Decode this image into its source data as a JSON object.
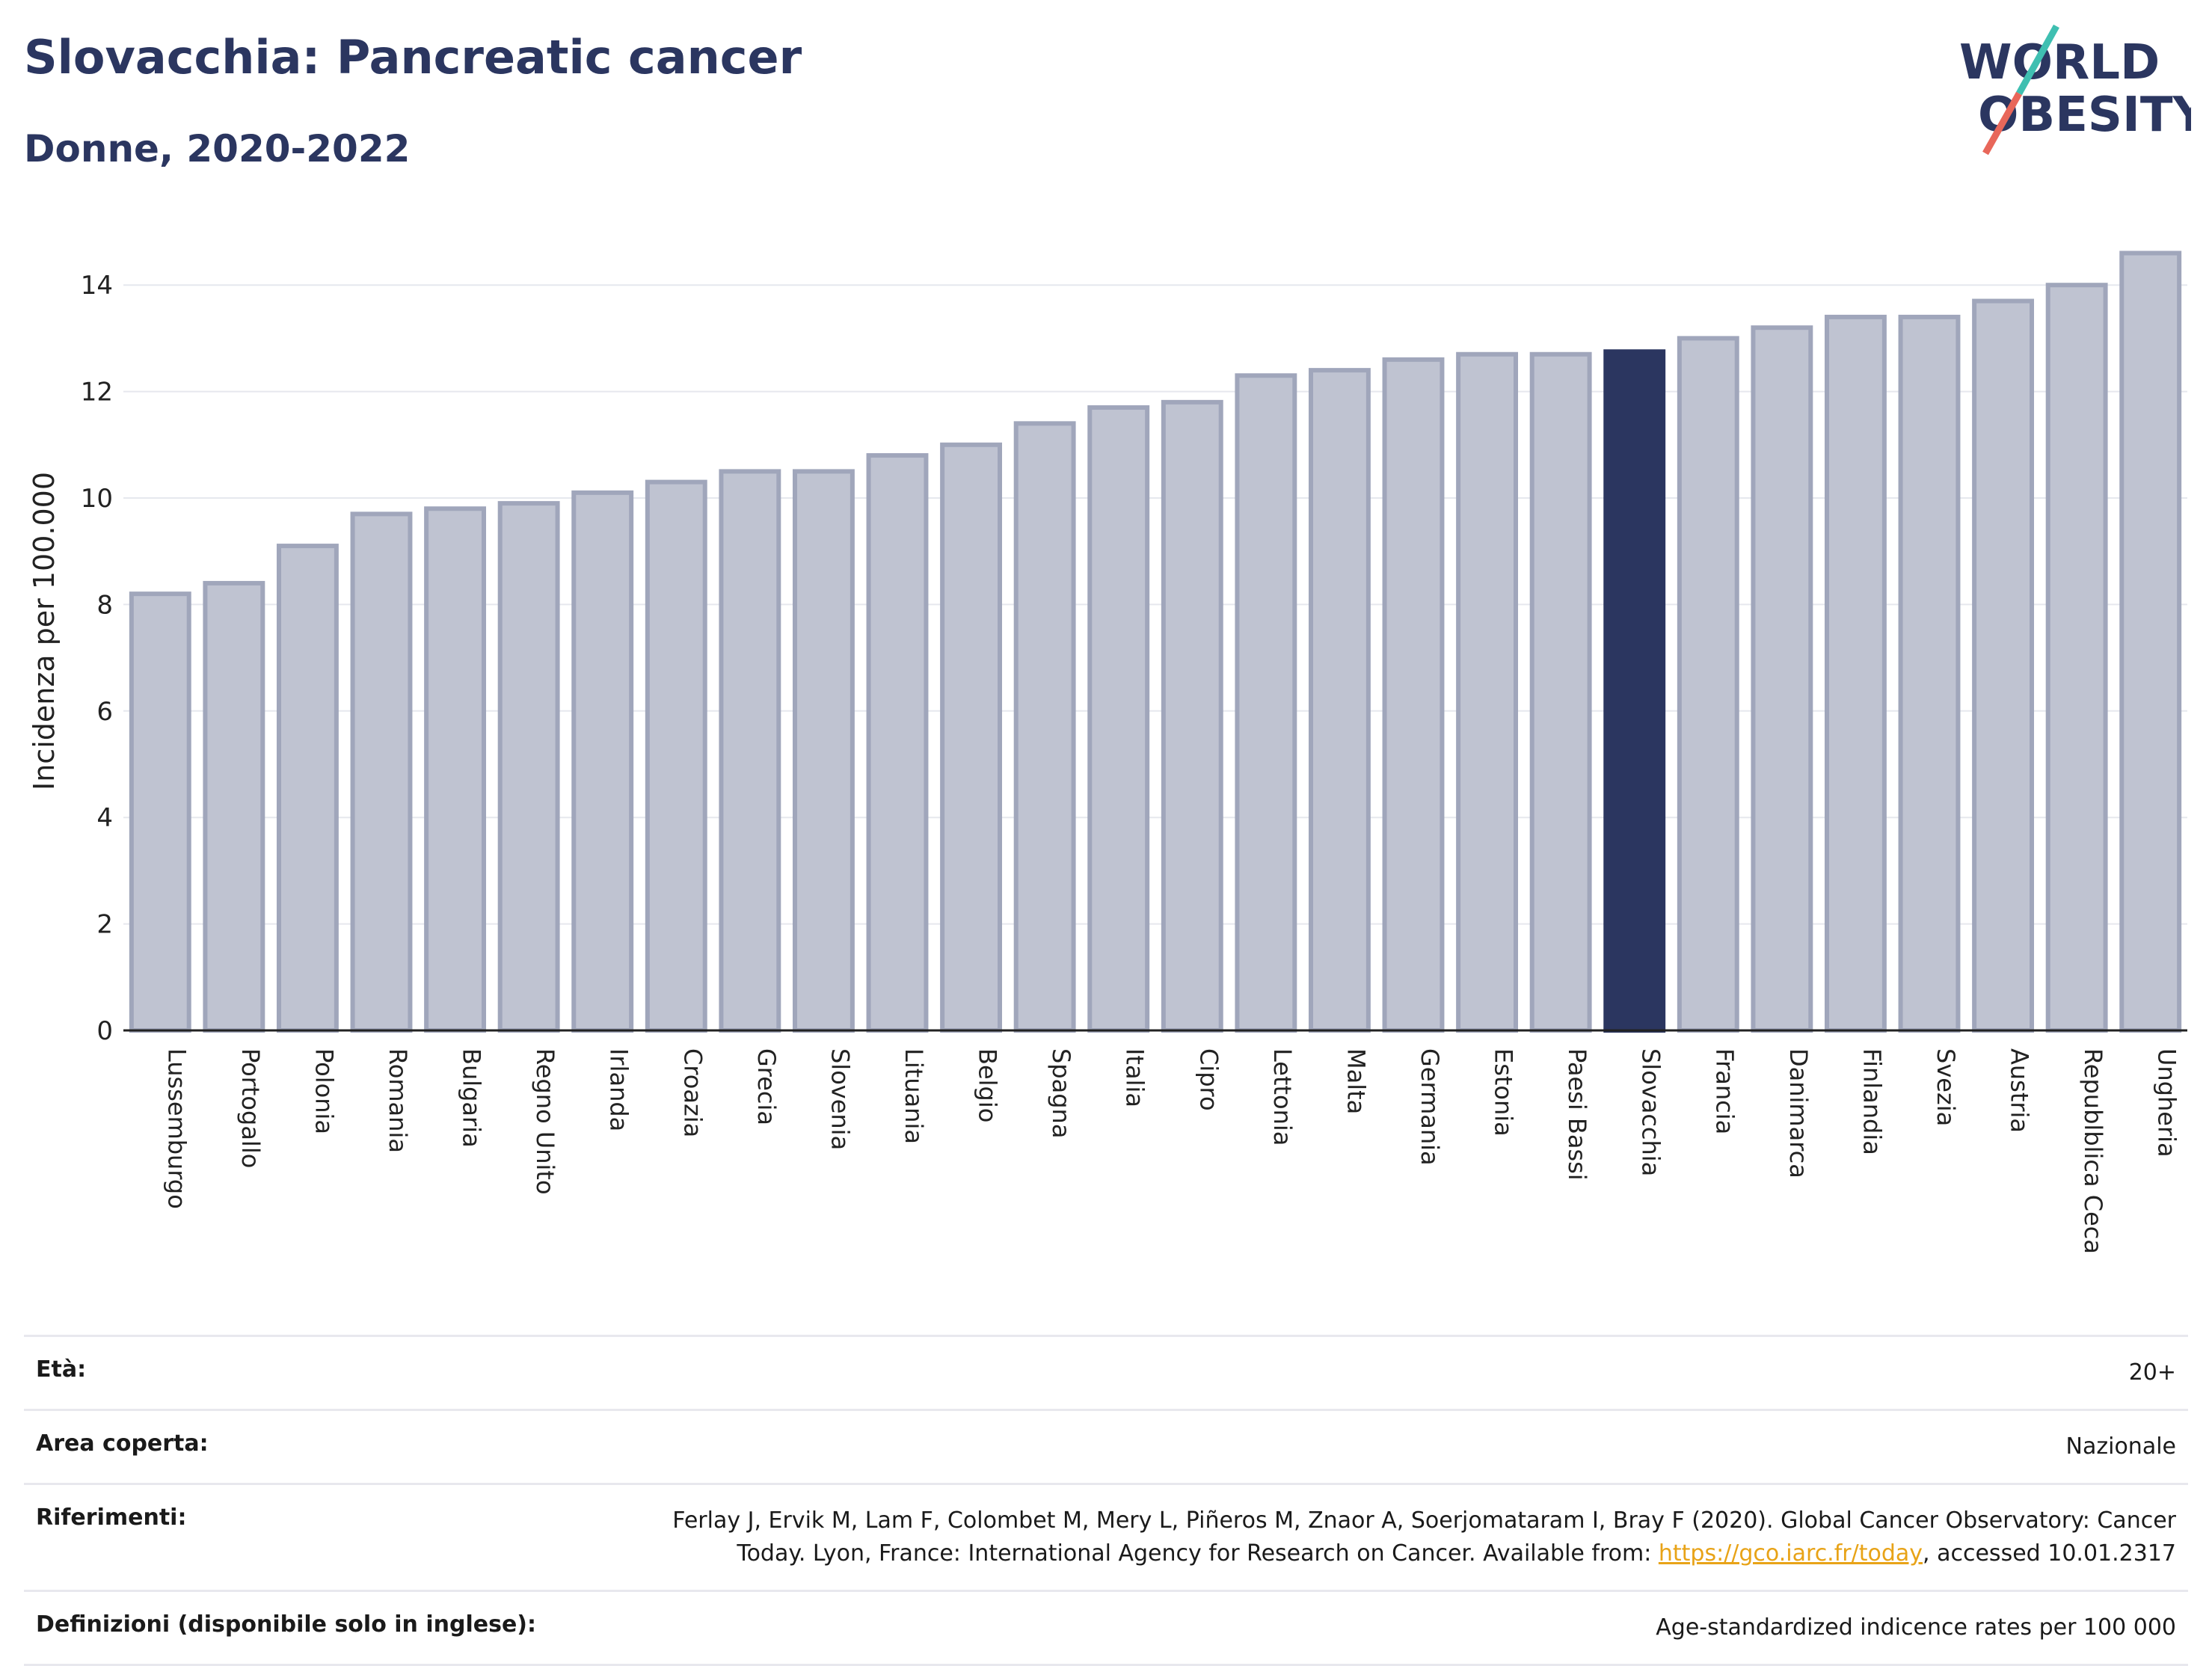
{
  "header": {
    "title": "Slovacchia: Pancreatic cancer",
    "subtitle": "Donne, 2020-2022"
  },
  "logo": {
    "line1": "WORLD",
    "line2": "OBESITY",
    "accent_teal": "#3fbfb1",
    "accent_red": "#e8675a",
    "text_color": "#2b3660"
  },
  "colors": {
    "bar": "#bfc3d1",
    "bar_border": "#a0a6bb",
    "highlight": "#2b3660"
  },
  "chart_data": {
    "type": "bar",
    "ylabel": "Incidenza per 100.000",
    "ylim": [
      0,
      15
    ],
    "yticks": [
      0,
      2,
      4,
      6,
      8,
      10,
      12,
      14
    ],
    "grid": true,
    "highlight": "Slovacchia",
    "categories": [
      "Lussemburgo",
      "Portogallo",
      "Polonia",
      "Romania",
      "Bulgaria",
      "Regno Unito",
      "Irlanda",
      "Croazia",
      "Grecia",
      "Slovenia",
      "Lituania",
      "Belgio",
      "Spagna",
      "Italia",
      "Cipro",
      "Lettonia",
      "Malta",
      "Germania",
      "Estonia",
      "Paesi Bassi",
      "Slovacchia",
      "Francia",
      "Danimarca",
      "Finlandia",
      "Svezia",
      "Austria",
      "Republblica Ceca",
      "Ungheria"
    ],
    "values": [
      8.2,
      8.4,
      9.1,
      9.7,
      9.8,
      9.9,
      10.1,
      10.3,
      10.5,
      10.5,
      10.8,
      11.0,
      11.4,
      11.7,
      11.8,
      12.3,
      12.4,
      12.6,
      12.7,
      12.7,
      12.75,
      13.0,
      13.2,
      13.4,
      13.4,
      13.7,
      14.0,
      14.6
    ]
  },
  "info": [
    {
      "key": "Età:",
      "value": "20+"
    },
    {
      "key": "Area coperta:",
      "value": "Nazionale"
    },
    {
      "key": "Riferimenti:",
      "value_line1": "Ferlay J, Ervik M, Lam F, Colombet M, Mery L, Piñeros M, Znaor A, Soerjomataram I, Bray F (2020). Global Cancer Observatory: Cancer",
      "value_line2_pre": "Today. Lyon, France: International Agency for Research on Cancer. Available from: ",
      "link": "https://gco.iarc.fr/today",
      "value_line2_post": ", accessed 10.01.2317"
    },
    {
      "key": "Definizioni (disponibile solo in inglese):",
      "value": "Age-standardized indicence rates per 100 000"
    }
  ]
}
